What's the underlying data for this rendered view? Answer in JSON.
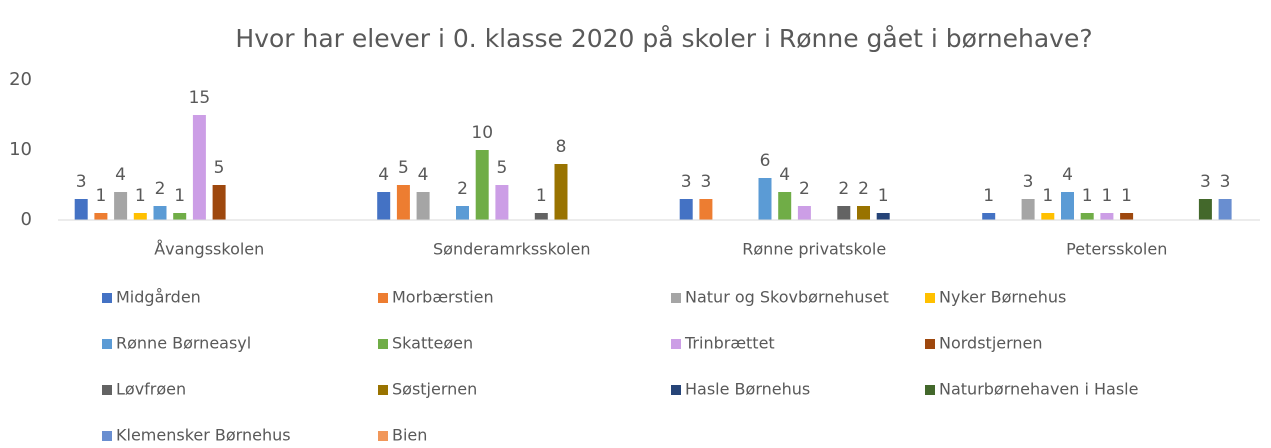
{
  "chart_data": {
    "type": "bar",
    "title": "Hvor har elever i 0. klasse 2020 på skoler i Rønne gået i børnehave?",
    "categories": [
      "Åvangsskolen",
      "Sønderamrksskolen",
      "Rønne privatskole",
      "Petersskolen"
    ],
    "ylim": [
      0,
      20
    ],
    "yticks": [
      0,
      10,
      20
    ],
    "grid": false,
    "legend": "bottom",
    "series": [
      {
        "name": "Midgården",
        "color": "#4472c4",
        "values": [
          3,
          4,
          3,
          1
        ]
      },
      {
        "name": "Morbærstien",
        "color": "#ed7d31",
        "values": [
          1,
          5,
          3,
          null
        ]
      },
      {
        "name": "Natur og Skovbørnehuset",
        "color": "#a5a5a5",
        "values": [
          4,
          4,
          null,
          3
        ]
      },
      {
        "name": "Nyker Børnehus",
        "color": "#ffc000",
        "values": [
          1,
          null,
          null,
          1
        ]
      },
      {
        "name": "Rønne Børneasyl",
        "color": "#5b9bd5",
        "values": [
          2,
          2,
          6,
          4
        ]
      },
      {
        "name": "Skatteøen",
        "color": "#70ad47",
        "values": [
          1,
          10,
          4,
          1
        ]
      },
      {
        "name": "Trinbrættet",
        "color": "#cc9ee6",
        "values": [
          15,
          5,
          2,
          1
        ]
      },
      {
        "name": "Nordstjernen",
        "color": "#9e480e",
        "values": [
          5,
          null,
          null,
          1
        ]
      },
      {
        "name": "Løvfrøen",
        "color": "#636363",
        "values": [
          null,
          1,
          2,
          null
        ]
      },
      {
        "name": "Søstjernen",
        "color": "#997300",
        "values": [
          null,
          8,
          2,
          null
        ]
      },
      {
        "name": "Hasle Børnehus",
        "color": "#264478",
        "values": [
          null,
          null,
          1,
          null
        ]
      },
      {
        "name": "Naturbørnehaven i Hasle",
        "color": "#43682b",
        "values": [
          null,
          null,
          null,
          3
        ]
      },
      {
        "name": "Klemensker Børnehus",
        "color": "#698ed0",
        "values": [
          null,
          null,
          null,
          3
        ]
      },
      {
        "name": "Bien",
        "color": "#f1975a",
        "values": [
          null,
          null,
          null,
          null
        ]
      }
    ]
  }
}
